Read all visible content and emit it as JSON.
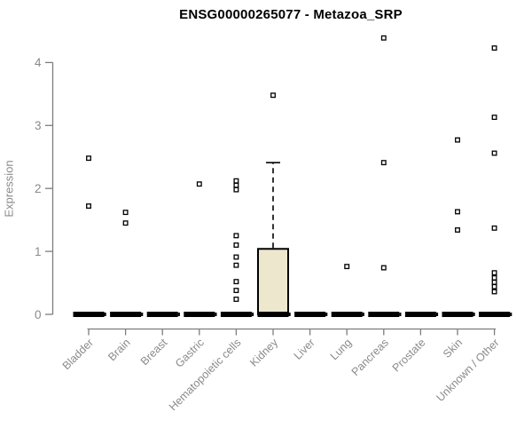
{
  "page": {
    "background": "#ffffff"
  },
  "chart_data": {
    "type": "boxplot",
    "title": "ENSG00000265077 - Metazoa_SRP",
    "xlabel": "",
    "ylabel": "Expression",
    "ylim": [
      0,
      4
    ],
    "yticks": [
      0,
      1,
      2,
      3,
      4
    ],
    "grid": false,
    "legend": null,
    "categories": [
      "Bladder",
      "Brain",
      "Breast",
      "Gastric",
      "Hematopoietic cells",
      "Kidney",
      "Liver",
      "Lung",
      "Pancreas",
      "Prostate",
      "Skin",
      "Unknown / Other"
    ],
    "boxes": [
      {
        "category": "Bladder",
        "median": 0,
        "q1": 0,
        "q3": 0,
        "whisker_low": 0,
        "whisker_high": 0,
        "outliers": [
          2.48,
          1.72
        ]
      },
      {
        "category": "Brain",
        "median": 0,
        "q1": 0,
        "q3": 0,
        "whisker_low": 0,
        "whisker_high": 0,
        "outliers": [
          1.62,
          1.45
        ]
      },
      {
        "category": "Breast",
        "median": 0,
        "q1": 0,
        "q3": 0,
        "whisker_low": 0,
        "whisker_high": 0,
        "outliers": []
      },
      {
        "category": "Gastric",
        "median": 0,
        "q1": 0,
        "q3": 0,
        "whisker_low": 0,
        "whisker_high": 0,
        "outliers": [
          2.07
        ]
      },
      {
        "category": "Hematopoietic cells",
        "median": 0,
        "q1": 0,
        "q3": 0,
        "whisker_low": 0,
        "whisker_high": 0,
        "outliers": [
          2.12,
          2.05,
          1.98,
          1.25,
          1.1,
          0.91,
          0.78,
          0.52,
          0.38,
          0.24
        ]
      },
      {
        "category": "Kidney",
        "median": 0,
        "q1": 0,
        "q3": 1.04,
        "whisker_low": 0,
        "whisker_high": 2.41,
        "outliers": [
          3.48
        ]
      },
      {
        "category": "Liver",
        "median": 0,
        "q1": 0,
        "q3": 0,
        "whisker_low": 0,
        "whisker_high": 0,
        "outliers": []
      },
      {
        "category": "Lung",
        "median": 0,
        "q1": 0,
        "q3": 0,
        "whisker_low": 0,
        "whisker_high": 0,
        "outliers": [
          0.76
        ]
      },
      {
        "category": "Pancreas",
        "median": 0,
        "q1": 0,
        "q3": 0,
        "whisker_low": 0,
        "whisker_high": 0,
        "outliers": [
          4.39,
          2.41,
          0.74
        ]
      },
      {
        "category": "Prostate",
        "median": 0,
        "q1": 0,
        "q3": 0,
        "whisker_low": 0,
        "whisker_high": 0,
        "outliers": []
      },
      {
        "category": "Skin",
        "median": 0,
        "q1": 0,
        "q3": 0,
        "whisker_low": 0,
        "whisker_high": 0,
        "outliers": [
          2.77,
          1.63,
          1.34
        ]
      },
      {
        "category": "Unknown / Other",
        "median": 0,
        "q1": 0,
        "q3": 0,
        "whisker_low": 0,
        "whisker_high": 0,
        "outliers": [
          4.23,
          3.13,
          2.56,
          1.37,
          0.66,
          0.58,
          0.51,
          0.44,
          0.36
        ]
      }
    ],
    "colors": {
      "box_fill": "#ece7cd",
      "box_border": "#000000",
      "median": "#000000",
      "outlier_fill": "#ffffff",
      "outlier_border": "#000000",
      "axis_line": "#7d7d7d",
      "tick_text": "#8a8a8a",
      "title_text": "#000000"
    }
  }
}
